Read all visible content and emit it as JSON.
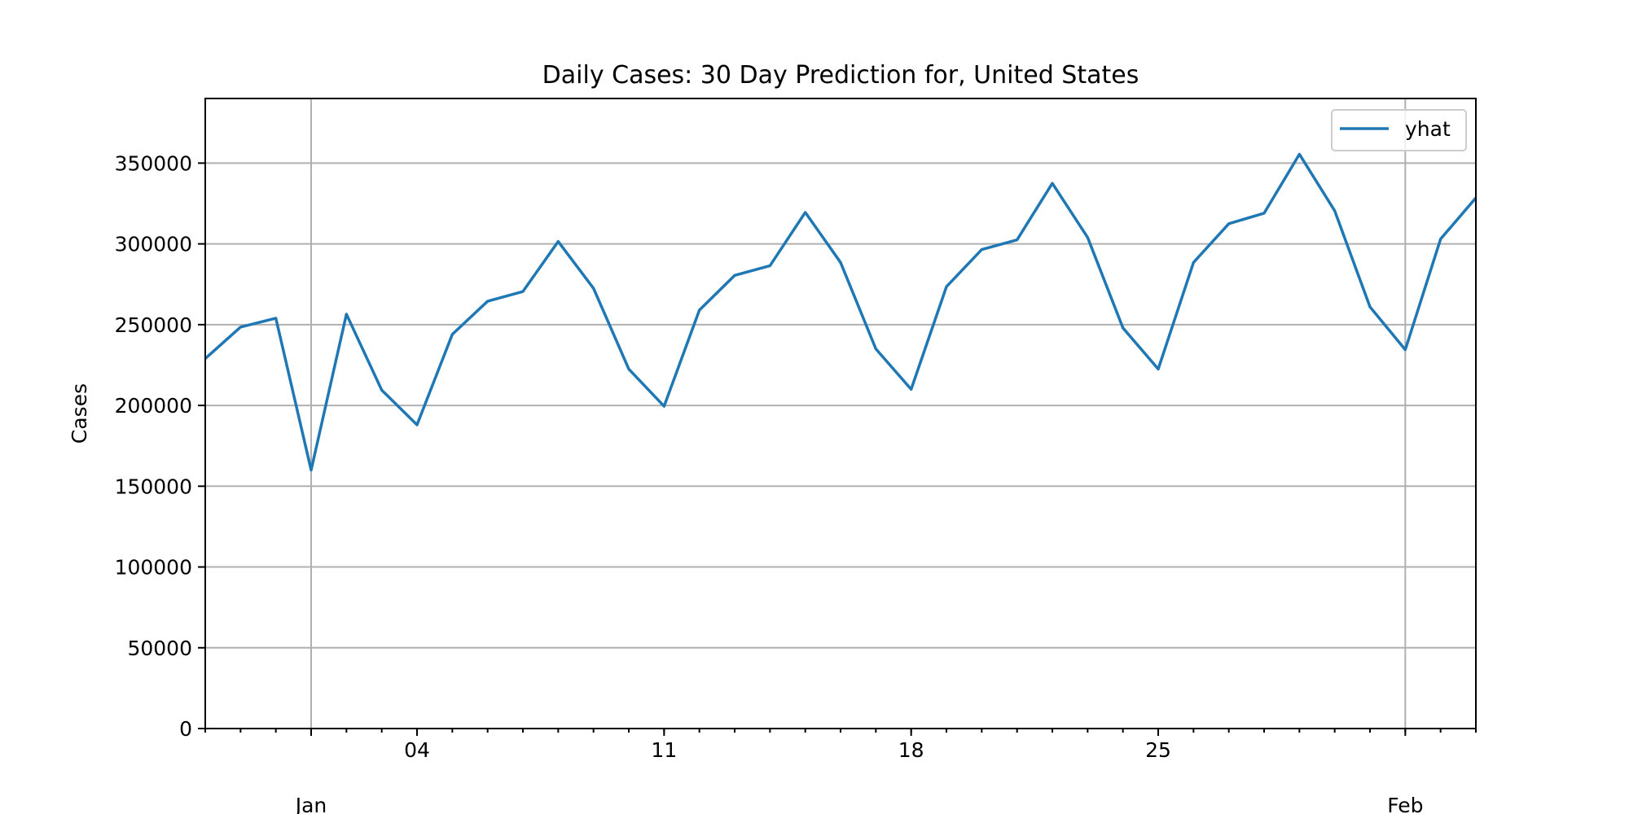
{
  "chart_data": {
    "type": "line",
    "title": "Daily Cases: 30 Day Prediction for, United States",
    "xlabel": "",
    "ylabel": "Cases",
    "xlim": [
      "2020-12-29",
      "2021-02-03"
    ],
    "ylim": [
      0,
      390000
    ],
    "y_ticks": [
      0,
      50000,
      100000,
      150000,
      200000,
      250000,
      300000,
      350000
    ],
    "y_tick_labels": [
      "0",
      "50000",
      "100000",
      "150000",
      "200000",
      "250000",
      "300000",
      "350000"
    ],
    "x_major_ticks": [
      {
        "date": "2021-01-04",
        "label": "04"
      },
      {
        "date": "2021-01-11",
        "label": "11"
      },
      {
        "date": "2021-01-18",
        "label": "18"
      },
      {
        "date": "2021-01-25",
        "label": "25"
      }
    ],
    "x_month_ticks": [
      {
        "date": "2021-01-01",
        "label": "Jan"
      },
      {
        "date": "2021-02-01",
        "label": "Feb"
      }
    ],
    "grid": true,
    "legend_position": "top-right",
    "colors": {
      "series": "#1f77b4"
    },
    "series": [
      {
        "name": "yhat",
        "x": [
          "2020-12-29",
          "2020-12-30",
          "2020-12-31",
          "2021-01-01",
          "2021-01-02",
          "2021-01-03",
          "2021-01-04",
          "2021-01-05",
          "2021-01-06",
          "2021-01-07",
          "2021-01-08",
          "2021-01-09",
          "2021-01-10",
          "2021-01-11",
          "2021-01-12",
          "2021-01-13",
          "2021-01-14",
          "2021-01-15",
          "2021-01-16",
          "2021-01-17",
          "2021-01-18",
          "2021-01-19",
          "2021-01-20",
          "2021-01-21",
          "2021-01-22",
          "2021-01-23",
          "2021-01-24",
          "2021-01-25",
          "2021-01-26",
          "2021-01-27",
          "2021-01-28",
          "2021-01-29",
          "2021-01-30",
          "2021-01-31",
          "2021-02-01",
          "2021-02-02",
          "2021-02-03"
        ],
        "values": [
          229000,
          248500,
          254000,
          160000,
          256500,
          209500,
          188000,
          244000,
          264500,
          270500,
          301500,
          272500,
          222500,
          199500,
          259000,
          280500,
          286500,
          319500,
          288500,
          235000,
          210000,
          273500,
          296500,
          302500,
          337500,
          304000,
          248000,
          222500,
          288500,
          312500,
          319000,
          355500,
          320500,
          261000,
          234500,
          303000,
          328500
        ]
      }
    ]
  }
}
